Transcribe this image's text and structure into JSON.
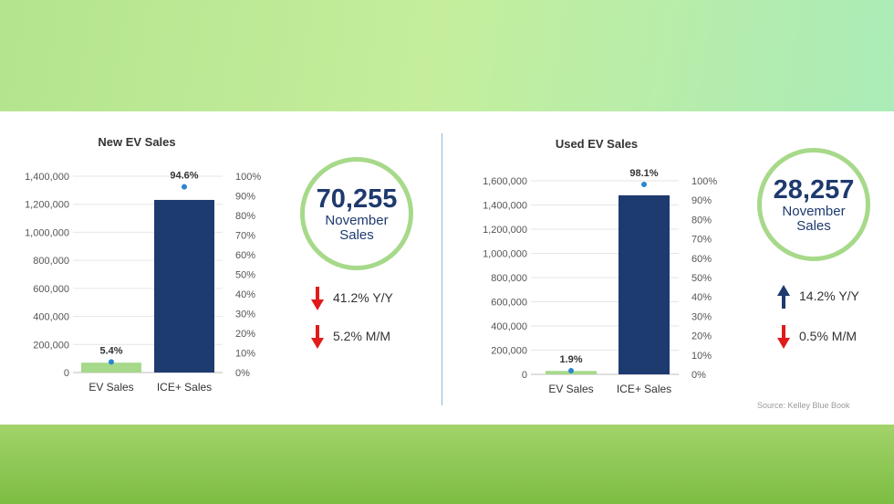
{
  "colors": {
    "ev_bar": "#a6d98a",
    "ice_bar": "#1e3b70",
    "share_point": "#2a86d0",
    "arrow_down": "#e01b1b",
    "arrow_up": "#1e3a6e",
    "circle_ring": "#a7d98a"
  },
  "chart_data": [
    {
      "type": "bar",
      "title": "New EV Sales",
      "categories": [
        "EV Sales",
        "ICE+ Sales"
      ],
      "series": [
        {
          "values": [
            70255,
            1231000
          ],
          "axis": "left",
          "color": "#a6d98a/#1e3b70"
        },
        {
          "values": [
            5.4,
            94.6
          ],
          "axis": "right",
          "kind": "point",
          "color": "#2a86d0"
        }
      ],
      "share_labels": [
        "5.4%",
        "94.6%"
      ],
      "ylim_left": [
        0,
        1400000
      ],
      "yticks_left": [
        "0",
        "200,000",
        "400,000",
        "600,000",
        "800,000",
        "1,000,000",
        "1,200,000",
        "1,400,000"
      ],
      "ylim_right": [
        0,
        100
      ],
      "yticks_right": [
        "0%",
        "10%",
        "20%",
        "30%",
        "40%",
        "50%",
        "60%",
        "70%",
        "80%",
        "90%",
        "100%"
      ]
    },
    {
      "type": "bar",
      "title": "Used EV Sales",
      "categories": [
        "EV Sales",
        "ICE+ Sales"
      ],
      "series": [
        {
          "values": [
            28257,
            1480000
          ],
          "axis": "left",
          "color": "#a6d98a/#1e3b70"
        },
        {
          "values": [
            1.9,
            98.1
          ],
          "axis": "right",
          "kind": "point",
          "color": "#2a86d0"
        }
      ],
      "share_labels": [
        "1.9%",
        "98.1%"
      ],
      "ylim_left": [
        0,
        1600000
      ],
      "yticks_left": [
        "0",
        "200,000",
        "400,000",
        "600,000",
        "800,000",
        "1,000,000",
        "1,200,000",
        "1,400,000",
        "1,600,000"
      ],
      "ylim_right": [
        0,
        100
      ],
      "yticks_right": [
        "0%",
        "10%",
        "20%",
        "30%",
        "40%",
        "50%",
        "60%",
        "70%",
        "80%",
        "90%",
        "100%"
      ]
    }
  ],
  "new_summary": {
    "value": "70,255",
    "label": "November Sales",
    "stats": [
      {
        "direction": "down",
        "text": "41.2% Y/Y"
      },
      {
        "direction": "down",
        "text": "5.2% M/M"
      }
    ]
  },
  "used_summary": {
    "value": "28,257",
    "label": "November Sales",
    "stats": [
      {
        "direction": "up",
        "text": "14.2% Y/Y"
      },
      {
        "direction": "down",
        "text": "0.5% M/M"
      }
    ]
  },
  "source": "Source: Kelley Blue Book"
}
